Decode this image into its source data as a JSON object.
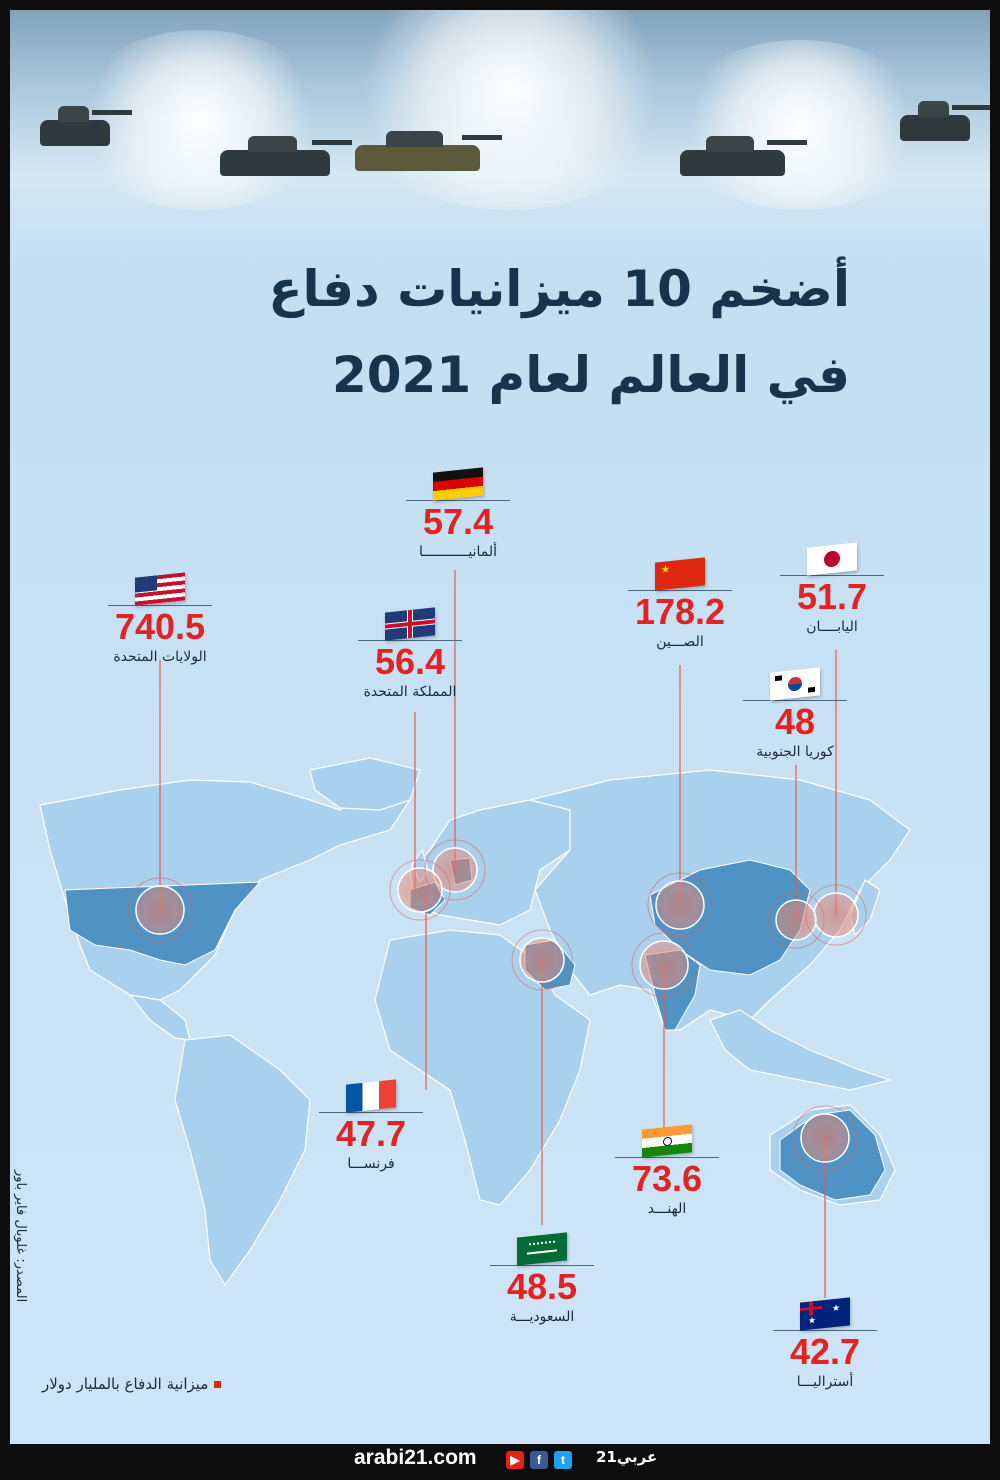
{
  "title": {
    "line1": "أضخم 10 ميزانيات دفاع",
    "line2": "في العالم لعام 2021"
  },
  "countries": [
    {
      "key": "usa",
      "name": "الولايات المتحدة",
      "value": "740.5",
      "flag": "us-flag-icon"
    },
    {
      "key": "germany",
      "name": "ألمانيـــــــــــا",
      "value": "57.4",
      "flag": "germany-flag-icon"
    },
    {
      "key": "uk",
      "name": "المملكة المتحدة",
      "value": "56.4",
      "flag": "uk-flag-icon"
    },
    {
      "key": "china",
      "name": "الصـــين",
      "value": "178.2",
      "flag": "china-flag-icon"
    },
    {
      "key": "japan",
      "name": "اليابــــان",
      "value": "51.7",
      "flag": "japan-flag-icon"
    },
    {
      "key": "korea",
      "name": "كوريا الجنوبية",
      "value": "48",
      "flag": "south-korea-flag-icon"
    },
    {
      "key": "france",
      "name": "فرنســـا",
      "value": "47.7",
      "flag": "france-flag-icon"
    },
    {
      "key": "india",
      "name": "الهنـــد",
      "value": "73.6",
      "flag": "india-flag-icon"
    },
    {
      "key": "saudi",
      "name": "السعوديـــة",
      "value": "48.5",
      "flag": "saudi-flag-icon"
    },
    {
      "key": "australia",
      "name": "أستراليـــا",
      "value": "42.7",
      "flag": "australia-flag-icon"
    }
  ],
  "legend": "ميزانية الدفاع بالمليار دولار",
  "source": "المصدر: غلوبال فاير باور",
  "footer": {
    "site": "arabi21.com",
    "brand": "عربي21",
    "icons": [
      "youtube-icon",
      "facebook-icon",
      "twitter-icon"
    ]
  },
  "colors": {
    "value": "#e32222",
    "title": "#16344d",
    "highlight": "#4e93c4",
    "marker": "#e88a78"
  }
}
